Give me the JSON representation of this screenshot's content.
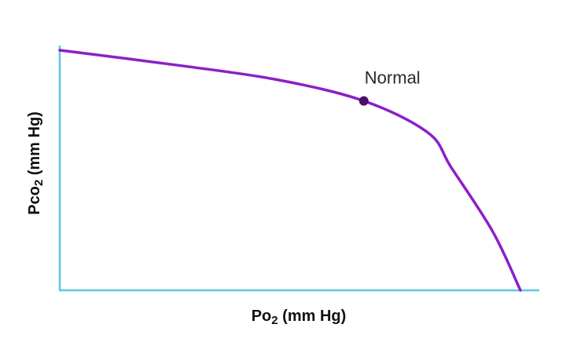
{
  "chart_data": {
    "type": "line",
    "title": "",
    "xlabel": {
      "main": "Po",
      "sub": "2",
      "unit": " (mm Hg)"
    },
    "ylabel": {
      "main": "Pco",
      "sub": "2",
      "unit": " (mm Hg)"
    },
    "xlim": [
      0,
      100
    ],
    "ylim": [
      0,
      100
    ],
    "ticks": "none",
    "grid": false,
    "legend": "none",
    "series": [
      {
        "points": [
          [
            0,
            90
          ],
          [
            25,
            84.5
          ],
          [
            47,
            79
          ],
          [
            66,
            71
          ],
          [
            80,
            59
          ],
          [
            85,
            46
          ],
          [
            94,
            22
          ],
          [
            100,
            0
          ]
        ]
      }
    ],
    "annotations": [
      {
        "label": "Normal",
        "x": 66,
        "y": 71
      }
    ],
    "colors": {
      "axis": "#5bc8e0",
      "curve": "#8b1fc9",
      "marker": "#4b0f6b",
      "text": "#111111"
    }
  }
}
